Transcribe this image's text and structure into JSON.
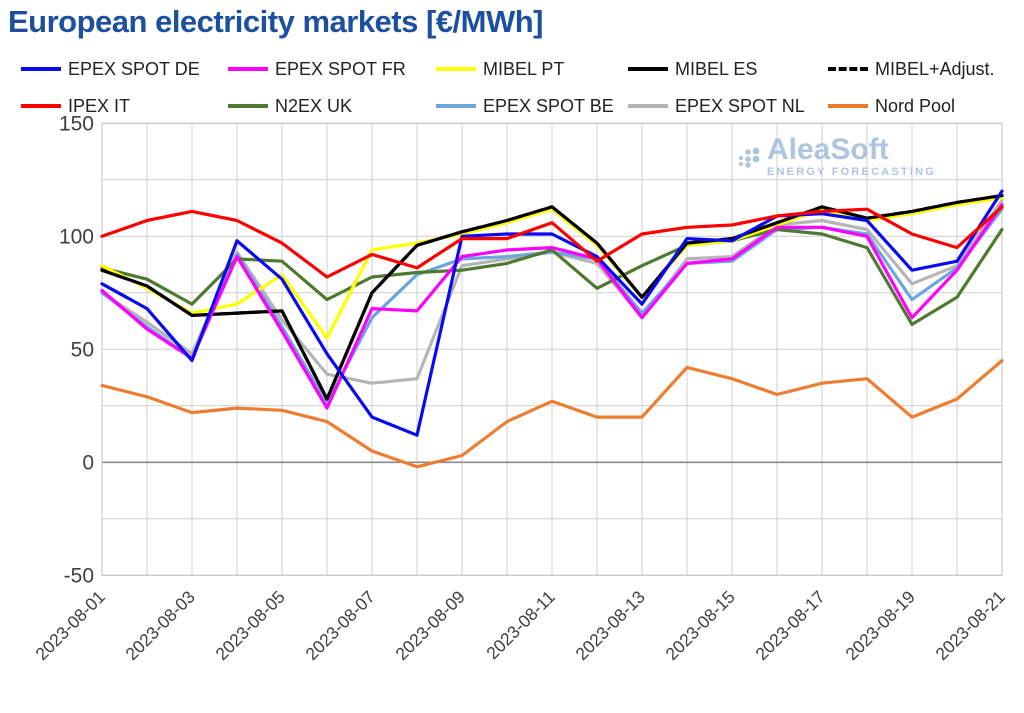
{
  "title": "European electricity markets [€/MWh]",
  "watermark": {
    "name": "AleaSoft",
    "subtitle": "ENERGY FORECASTING",
    "color": "#9fbcdc"
  },
  "axis": {
    "y_ticks": [
      150,
      100,
      50,
      0,
      -50
    ],
    "x_tick_labels": [
      "2023-08-01",
      "2023-08-03",
      "2023-08-05",
      "2023-08-07",
      "2023-08-09",
      "2023-08-11",
      "2023-08-13",
      "2023-08-15",
      "2023-08-17",
      "2023-08-19",
      "2023-08-21"
    ]
  },
  "chart_data": {
    "type": "line",
    "title": "European electricity markets [€/MWh]",
    "xlabel": "",
    "ylabel": "",
    "ylim": [
      -50,
      150
    ],
    "y_grid_step": 25,
    "grid": true,
    "legend_position": "top",
    "x": [
      "2023-08-01",
      "2023-08-02",
      "2023-08-03",
      "2023-08-04",
      "2023-08-05",
      "2023-08-06",
      "2023-08-07",
      "2023-08-08",
      "2023-08-09",
      "2023-08-10",
      "2023-08-11",
      "2023-08-12",
      "2023-08-13",
      "2023-08-14",
      "2023-08-15",
      "2023-08-16",
      "2023-08-17",
      "2023-08-18",
      "2023-08-19",
      "2023-08-20",
      "2023-08-21"
    ],
    "series": [
      {
        "name": "EPEX SPOT DE",
        "color": "#0a0af0",
        "dash": false,
        "legend_row": 1,
        "values": [
          79,
          68,
          45,
          98,
          81,
          48,
          20,
          12,
          100,
          101,
          101,
          91,
          70,
          99,
          98,
          109,
          110,
          107,
          85,
          89,
          120
        ]
      },
      {
        "name": "EPEX SPOT FR",
        "color": "#ff00ff",
        "dash": false,
        "legend_row": 1,
        "values": [
          76,
          59,
          46,
          91,
          58,
          24,
          68,
          67,
          91,
          94,
          95,
          90,
          64,
          88,
          90,
          104,
          104,
          100,
          64,
          85,
          114
        ]
      },
      {
        "name": "MIBEL PT",
        "color": "#ffff00",
        "dash": false,
        "legend_row": 1,
        "values": [
          87,
          77,
          66,
          70,
          83,
          55,
          94,
          97,
          101,
          106,
          112,
          96,
          73,
          96,
          98,
          105,
          112,
          107,
          110,
          114,
          117
        ]
      },
      {
        "name": "MIBEL ES",
        "color": "#000000",
        "dash": false,
        "legend_row": 1,
        "values": [
          85,
          78,
          65,
          66,
          67,
          28,
          75,
          96,
          102,
          107,
          113,
          97,
          73,
          97,
          99,
          106,
          113,
          108,
          111,
          115,
          118
        ]
      },
      {
        "name": "MIBEL+Adjust.",
        "color": "#000000",
        "dash": true,
        "legend_row": 1,
        "values": [
          85,
          78,
          65,
          66,
          67,
          28,
          75,
          96,
          102,
          107,
          113,
          97,
          73,
          97,
          99,
          106,
          113,
          108,
          111,
          115,
          118
        ]
      },
      {
        "name": "IPEX IT",
        "color": "#ff0000",
        "dash": false,
        "legend_row": 2,
        "values": [
          100,
          107,
          111,
          107,
          97,
          82,
          92,
          86,
          99,
          99,
          106,
          89,
          101,
          104,
          105,
          109,
          111,
          112,
          101,
          95,
          113
        ]
      },
      {
        "name": "N2EX UK",
        "color": "#4e7a30",
        "dash": false,
        "legend_row": 2,
        "values": [
          86,
          81,
          70,
          90,
          89,
          72,
          82,
          84,
          85,
          88,
          94,
          77,
          87,
          96,
          98,
          103,
          101,
          95,
          61,
          73,
          103
        ]
      },
      {
        "name": "EPEX SPOT BE",
        "color": "#6ca6dd",
        "dash": false,
        "legend_row": 2,
        "values": [
          75,
          60,
          46,
          92,
          60,
          26,
          64,
          83,
          90,
          91,
          93,
          90,
          66,
          88,
          89,
          103,
          104,
          101,
          72,
          86,
          112
        ]
      },
      {
        "name": "EPEX SPOT NL",
        "color": "#b5b5b5",
        "dash": false,
        "legend_row": 2,
        "values": [
          75,
          62,
          48,
          93,
          63,
          39,
          35,
          37,
          87,
          90,
          93,
          88,
          64,
          90,
          91,
          105,
          107,
          103,
          79,
          87,
          116
        ]
      },
      {
        "name": "Nord Pool",
        "color": "#ed7d31",
        "dash": false,
        "legend_row": 2,
        "values": [
          34,
          29,
          22,
          24,
          23,
          18,
          5,
          -2,
          3,
          18,
          27,
          20,
          20,
          42,
          37,
          30,
          35,
          37,
          20,
          28,
          45
        ]
      }
    ],
    "annotations": [
      "AleaSoft",
      "ENERGY FORECASTING"
    ]
  },
  "style": {
    "grid_color": "#cfcfcf",
    "zero_line_color": "#8a8a8a",
    "border_color": "#c0c0c0",
    "tick_label_color": "#3f3f3f",
    "title_color": "#1c4fa0"
  }
}
